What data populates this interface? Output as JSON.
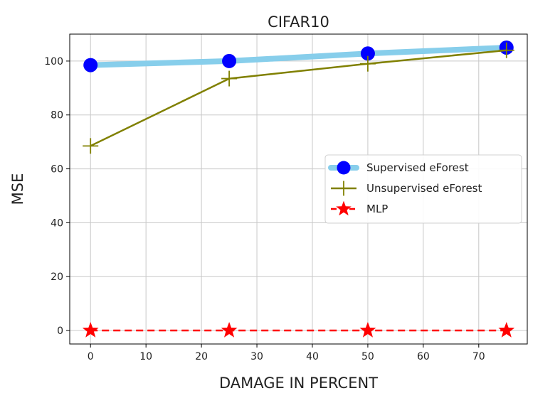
{
  "chart_data": {
    "type": "line",
    "title": "CIFAR10",
    "xlabel": "DAMAGE IN PERCENT",
    "ylabel": "MSE",
    "xlim": [
      -3.75,
      78.75
    ],
    "ylim": [
      -5,
      110
    ],
    "xticks": [
      0,
      10,
      20,
      30,
      40,
      50,
      60,
      70
    ],
    "yticks": [
      0,
      20,
      40,
      60,
      80,
      100
    ],
    "grid": true,
    "legend_position": "center-right",
    "series": [
      {
        "name": "Supervised eForest",
        "x": [
          0,
          25,
          50,
          75
        ],
        "y": [
          98.5,
          100,
          102.8,
          105
        ],
        "line_color": "#87ceeb",
        "marker_color": "#0000ff",
        "marker": "circle",
        "line_style": "solid"
      },
      {
        "name": "Unsupervised eForest",
        "x": [
          0,
          25,
          50,
          75
        ],
        "y": [
          68.5,
          93.5,
          99,
          104
        ],
        "line_color": "#808000",
        "marker_color": "#808000",
        "marker": "plus",
        "line_style": "solid"
      },
      {
        "name": "MLP",
        "x": [
          0,
          25,
          50,
          75
        ],
        "y": [
          0,
          0,
          0,
          0
        ],
        "line_color": "#ff0000",
        "marker_color": "#ff0000",
        "marker": "star",
        "line_style": "dashed"
      }
    ]
  }
}
